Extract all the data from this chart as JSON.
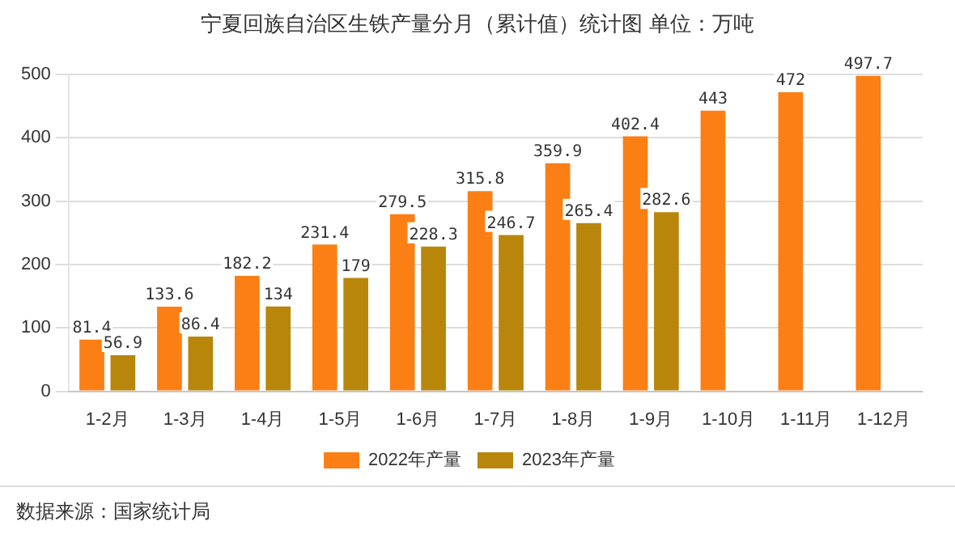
{
  "chart_data": {
    "type": "bar",
    "title": "宁夏回族自治区生铁产量分月（累计值）统计图 单位：万吨",
    "categories": [
      "1-2月",
      "1-3月",
      "1-4月",
      "1-5月",
      "1-6月",
      "1-7月",
      "1-8月",
      "1-9月",
      "1-10月",
      "1-11月",
      "1-12月"
    ],
    "series": [
      {
        "name": "2022年产量",
        "color": "#fb7f14",
        "values": [
          81.4,
          133.6,
          182.2,
          231.4,
          279.5,
          315.8,
          359.9,
          402.4,
          443,
          472,
          497.7
        ]
      },
      {
        "name": "2023年产量",
        "color": "#b8860b",
        "values": [
          56.9,
          86.4,
          134,
          179,
          228.3,
          246.7,
          265.4,
          282.6,
          null,
          null,
          null
        ]
      }
    ],
    "ylim": [
      0,
      500
    ],
    "yticks": [
      0,
      100,
      200,
      300,
      400,
      500
    ],
    "grid": "y",
    "legend": "bottom",
    "data_labels": true,
    "annotations": [
      "数据来源：国家统计局"
    ]
  }
}
